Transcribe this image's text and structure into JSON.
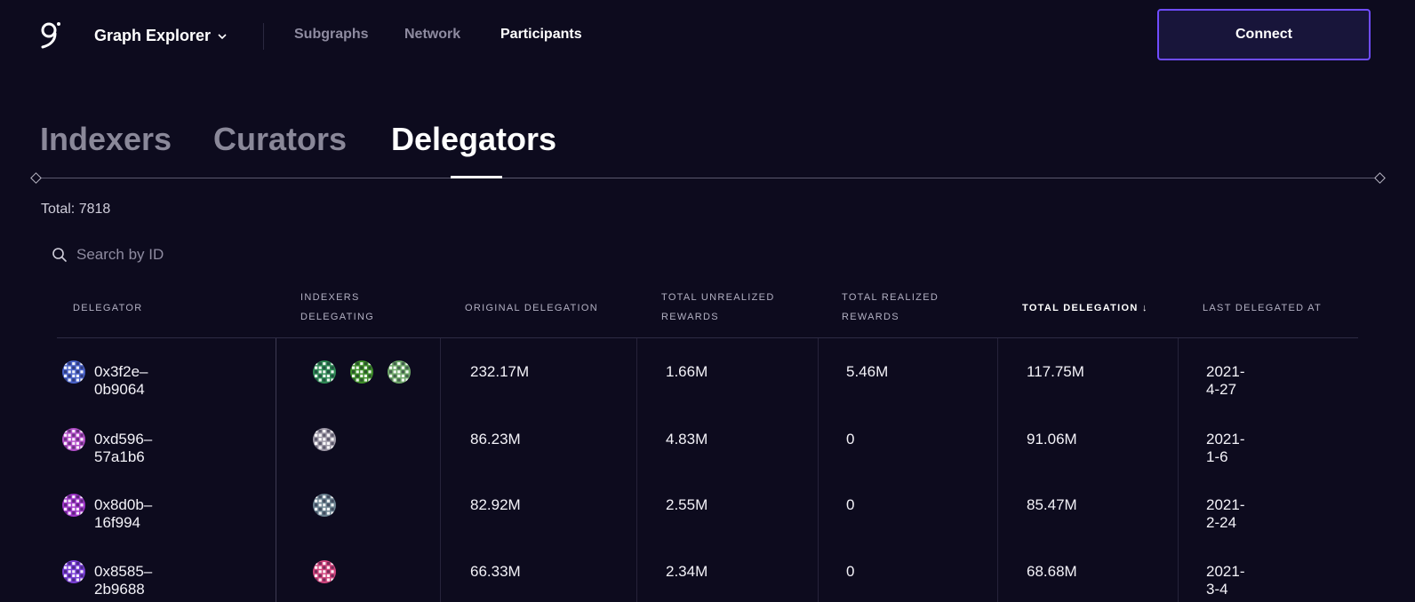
{
  "header": {
    "brand": "Graph Explorer",
    "nav": [
      "Subgraphs",
      "Network",
      "Participants"
    ],
    "active_nav": "Participants",
    "connect_label": "Connect"
  },
  "tabs": [
    "Indexers",
    "Curators",
    "Delegators"
  ],
  "active_tab": "Delegators",
  "total_label": "Total: 7818",
  "search": {
    "placeholder": "Search by ID"
  },
  "table": {
    "columns": [
      {
        "label": "DELEGATOR"
      },
      {
        "label": "INDEXERS DELEGATING"
      },
      {
        "label": "ORIGINAL DELEGATION"
      },
      {
        "label": "TOTAL UNREALIZED REWARDS"
      },
      {
        "label": "TOTAL REALIZED REWARDS"
      },
      {
        "label": "TOTAL DELEGATION ↓",
        "sorted": true
      },
      {
        "label": "LAST DELEGATED AT"
      }
    ],
    "rows": [
      {
        "delegator": "0x3f2e–0b9064",
        "avatar_color": "#4a63c9",
        "indexer_colors": [
          "#2f8a55",
          "#3f8f2a",
          "#6fa86a"
        ],
        "original": "232.17M",
        "unrealized": "1.66M",
        "realized": "5.46M",
        "total": "117.75M",
        "last": "2021-4-27"
      },
      {
        "delegator": "0xd596–57a1b6",
        "avatar_color": "#b34fc9",
        "indexer_colors": [
          "#9f9aa8"
        ],
        "original": "86.23M",
        "unrealized": "4.83M",
        "realized": "0",
        "total": "91.06M",
        "last": "2021-1-6"
      },
      {
        "delegator": "0x8d0b–16f994",
        "avatar_color": "#a037c9",
        "indexer_colors": [
          "#6b8290"
        ],
        "original": "82.92M",
        "unrealized": "2.55M",
        "realized": "0",
        "total": "85.47M",
        "last": "2021-2-24"
      },
      {
        "delegator": "0x8585–2b9688",
        "avatar_color": "#7a3fd6",
        "indexer_colors": [
          "#d0457e"
        ],
        "original": "66.33M",
        "unrealized": "2.34M",
        "realized": "0",
        "total": "68.68M",
        "last": "2021-3-4"
      }
    ]
  },
  "colors": {
    "background": "#0d0b1e",
    "accent": "#6f4cff"
  }
}
